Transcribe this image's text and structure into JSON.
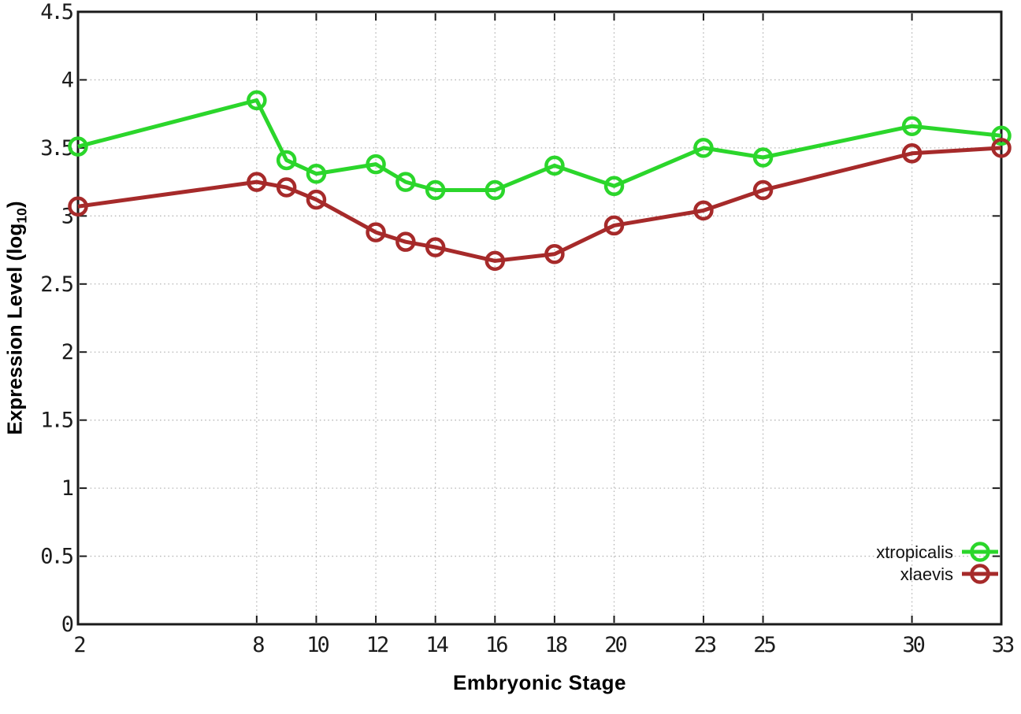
{
  "figure": {
    "xlabel": "Embryonic Stage",
    "ylabel_prefix": "Expression Level (log",
    "ylabel_sub": "10",
    "ylabel_suffix": ")"
  },
  "chart_data": {
    "type": "line",
    "title": "",
    "xlabel": "Embryonic Stage",
    "ylabel": "Expression Level (log10)",
    "x": [
      2,
      8,
      9,
      10,
      12,
      13,
      14,
      16,
      18,
      20,
      23,
      25,
      30,
      33
    ],
    "series": [
      {
        "name": "xtropicalis",
        "color": "#2bd62b",
        "values": [
          3.51,
          3.85,
          3.41,
          3.31,
          3.38,
          3.25,
          3.19,
          3.19,
          3.37,
          3.22,
          3.5,
          3.43,
          3.66,
          3.59
        ]
      },
      {
        "name": "xlaevis",
        "color": "#a62a2a",
        "values": [
          3.07,
          3.25,
          3.21,
          3.12,
          2.88,
          2.81,
          2.77,
          2.67,
          2.72,
          2.93,
          3.04,
          3.19,
          3.46,
          3.5
        ]
      }
    ],
    "xlim": [
      2,
      33
    ],
    "ylim": [
      0,
      4.5
    ],
    "x_ticks": [
      2,
      8,
      10,
      12,
      14,
      16,
      18,
      20,
      23,
      25,
      30,
      33
    ],
    "y_ticks": [
      0,
      0.5,
      1,
      1.5,
      2,
      2.5,
      3,
      3.5,
      4,
      4.5
    ],
    "grid": true,
    "grid_style": "dotted",
    "legend_position": "bottom-right",
    "marker": "open-circle"
  },
  "style": {
    "background": "#ffffff",
    "grid_color": "#b8b8b8",
    "border_color": "#1a1a1a",
    "tick_color": "#1a1a1a",
    "tick_label_color": "#1c1c1c",
    "legend_text_color": "#111111",
    "line_width": 5,
    "marker_radius": 10.5,
    "marker_stroke_width": 4.5
  }
}
